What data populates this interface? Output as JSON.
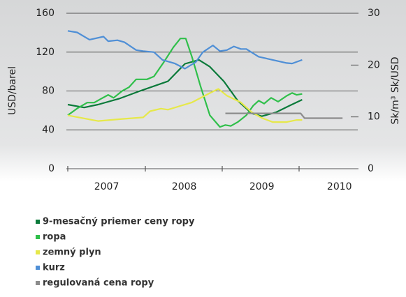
{
  "chart_data": {
    "type": "line",
    "y_label": "USD/barel",
    "y2_label": "Sk/m³ Sk/USD",
    "xlim": [
      2006.5,
      2010.75
    ],
    "xticks": [
      {
        "value": 2007.5,
        "label": "2007"
      },
      {
        "value": 2008.5,
        "label": "2008"
      },
      {
        "value": 2009.5,
        "label": "2009"
      },
      {
        "value": 2010.5,
        "label": "2010"
      }
    ],
    "ylim": [
      0,
      160
    ],
    "yticks": [
      0,
      40,
      80,
      120,
      160
    ],
    "y2lim": [
      0,
      30
    ],
    "y2ticks": [
      0,
      10,
      20,
      30
    ],
    "grid": true,
    "series": [
      {
        "name": "9-mesačný priemer ceny ropy",
        "color": "#0b7a3a",
        "x": [
          2007.0,
          2007.21,
          2007.39,
          2007.66,
          2007.93,
          2008.29,
          2008.51,
          2008.69,
          2008.83,
          2009.01,
          2009.19,
          2009.37,
          2009.5,
          2009.68,
          2009.86,
          2010.02
        ],
        "values": [
          66,
          63,
          66,
          72,
          80,
          90,
          108,
          112,
          105,
          90,
          70,
          57,
          54,
          58,
          65,
          71
        ]
      },
      {
        "name": "ropa",
        "color": "#2fbf4a",
        "x": [
          2007.0,
          2007.12,
          2007.25,
          2007.34,
          2007.43,
          2007.52,
          2007.59,
          2007.7,
          2007.79,
          2007.88,
          2008.02,
          2008.11,
          2008.24,
          2008.36,
          2008.45,
          2008.52,
          2008.6,
          2008.71,
          2008.83,
          2008.96,
          2009.03,
          2009.1,
          2009.19,
          2009.3,
          2009.39,
          2009.46,
          2009.53,
          2009.62,
          2009.71,
          2009.82,
          2009.89,
          2009.95,
          2010.02
        ],
        "values": [
          55,
          62,
          68,
          68,
          72,
          76,
          73,
          80,
          84,
          92,
          92,
          95,
          110,
          125,
          134,
          134,
          115,
          85,
          55,
          43,
          45,
          44,
          48,
          55,
          65,
          70,
          67,
          73,
          69,
          75,
          78,
          76,
          77
        ]
      },
      {
        "name": "zemný plyn",
        "color": "#e6e84a",
        "axis": "y2",
        "x": [
          2007.0,
          2007.39,
          2007.7,
          2007.97,
          2008.06,
          2008.2,
          2008.29,
          2008.6,
          2008.83,
          2008.94,
          2009.05,
          2009.23,
          2009.37,
          2009.5,
          2009.64,
          2009.82,
          2009.95,
          2010.02
        ],
        "values": [
          10.3,
          9.2,
          9.6,
          9.9,
          11.1,
          11.6,
          11.4,
          12.8,
          14.6,
          15.4,
          14.1,
          12.8,
          10.9,
          9.8,
          9.0,
          9.0,
          9.4,
          9.4
        ]
      },
      {
        "name": "kurz",
        "color": "#4f8fd6",
        "axis": "y2",
        "x": [
          2007.0,
          2007.12,
          2007.28,
          2007.46,
          2007.52,
          2007.64,
          2007.73,
          2007.88,
          2007.97,
          2008.11,
          2008.22,
          2008.38,
          2008.51,
          2008.65,
          2008.74,
          2008.87,
          2008.96,
          2009.05,
          2009.14,
          2009.23,
          2009.3,
          2009.46,
          2009.64,
          2009.82,
          2009.89,
          2010.02
        ],
        "values": [
          26.6,
          26.3,
          24.9,
          25.5,
          24.6,
          24.8,
          24.4,
          22.9,
          22.7,
          22.5,
          21.0,
          20.3,
          19.3,
          20.6,
          22.5,
          23.8,
          22.7,
          22.9,
          23.6,
          23.1,
          23.1,
          21.6,
          21.0,
          20.4,
          20.3,
          21.0
        ]
      },
      {
        "name": "regulovaná cena ropy",
        "color": "#8c8c8c",
        "x": [
          2009.03,
          2010.0,
          2010.05,
          2010.54
        ],
        "values": [
          57,
          57,
          52,
          52
        ]
      }
    ]
  }
}
